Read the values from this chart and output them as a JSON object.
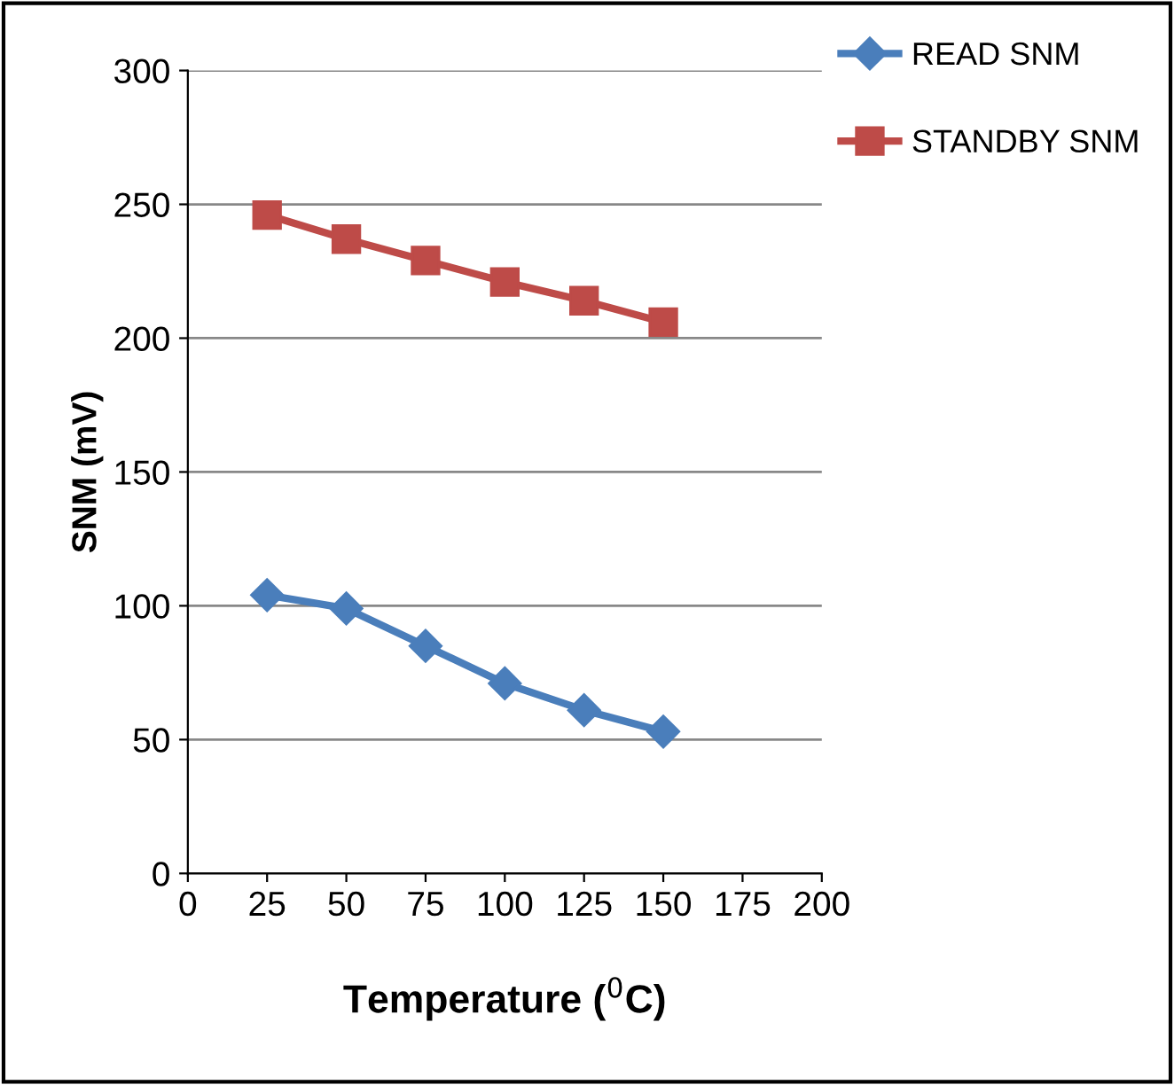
{
  "chart_data": {
    "type": "line",
    "xlabel": "Temperature ($^{0}$C)",
    "ylabel": "SNM (mV)",
    "x": [
      25,
      50,
      75,
      100,
      125,
      150
    ],
    "series": [
      {
        "name": "READ SNM",
        "color": "#4a7ebb",
        "marker": "diamond",
        "values": [
          104,
          99,
          85,
          71,
          61,
          53
        ]
      },
      {
        "name": "STANDBY SNM",
        "color": "#be4b48",
        "marker": "square",
        "values": [
          246,
          237,
          229,
          221,
          214,
          206
        ]
      }
    ],
    "xlim": [
      0,
      200
    ],
    "xticks": [
      0,
      25,
      50,
      75,
      100,
      125,
      150,
      175,
      200
    ],
    "ylim": [
      0,
      300
    ],
    "yticks": [
      0,
      50,
      100,
      150,
      200,
      250,
      300
    ],
    "grid": "y",
    "legend": "top right",
    "line_style": "solid"
  }
}
